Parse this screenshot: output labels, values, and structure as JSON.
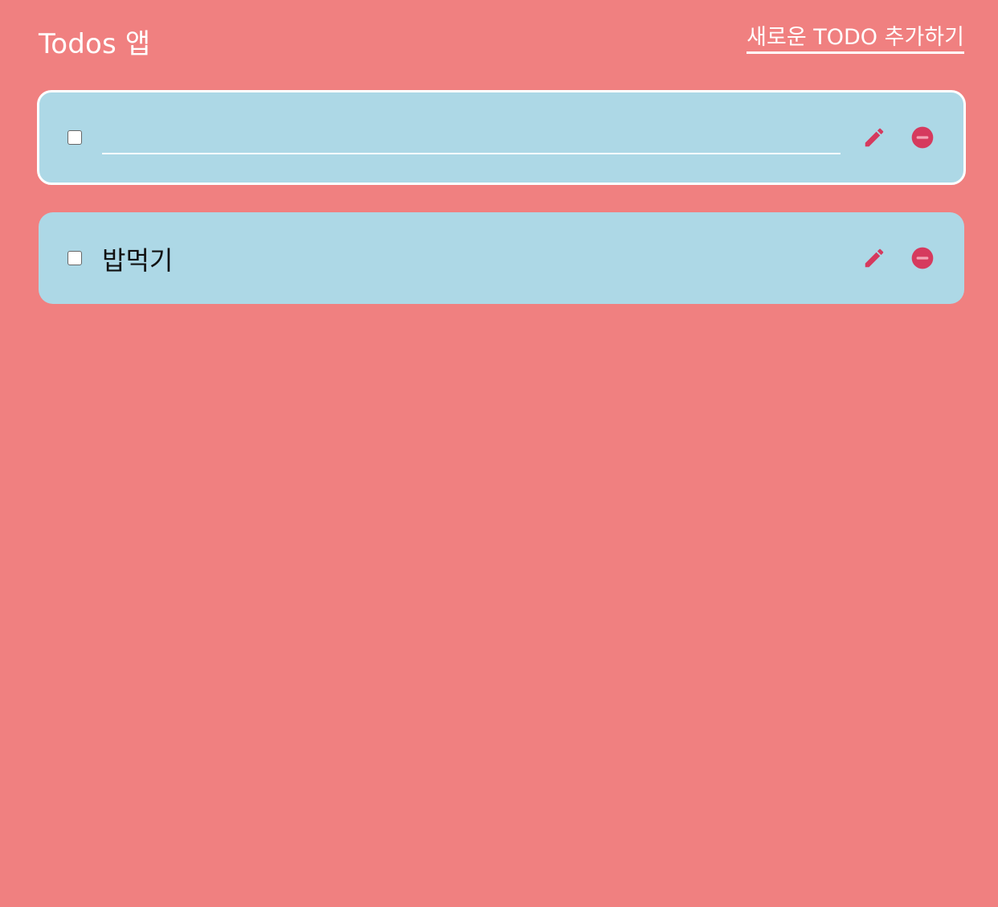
{
  "app": {
    "title": "Todos 앱",
    "add_link_label": "새로운 TODO 추가하기"
  },
  "colors": {
    "background": "#f08080",
    "card": "#add8e6",
    "accent": "#d63a5e",
    "text": "#111111"
  },
  "icons": {
    "edit": "pencil-icon",
    "delete": "minus-circle-icon"
  },
  "todos": [
    {
      "text": "",
      "editing": true,
      "checked": false,
      "placeholder": ""
    },
    {
      "text": "밥먹기",
      "editing": false,
      "checked": false
    }
  ]
}
